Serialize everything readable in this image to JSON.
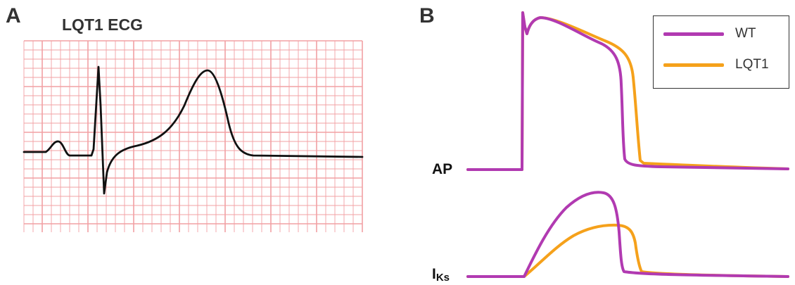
{
  "panel_a": {
    "letter": "A",
    "title": "LQT1 ECG"
  },
  "panel_b": {
    "letter": "B",
    "ap_label": "AP",
    "iks_label_main": "I",
    "iks_label_sub": "Ks",
    "legend": [
      {
        "label": "WT",
        "color": "#b13ab1"
      },
      {
        "label": "LQT1",
        "color": "#f5a11b"
      }
    ]
  },
  "colors": {
    "grid": "#f2a0a3",
    "ecg_trace": "#111111",
    "wt": "#b13ab1",
    "lqt1": "#f5a11b"
  }
}
